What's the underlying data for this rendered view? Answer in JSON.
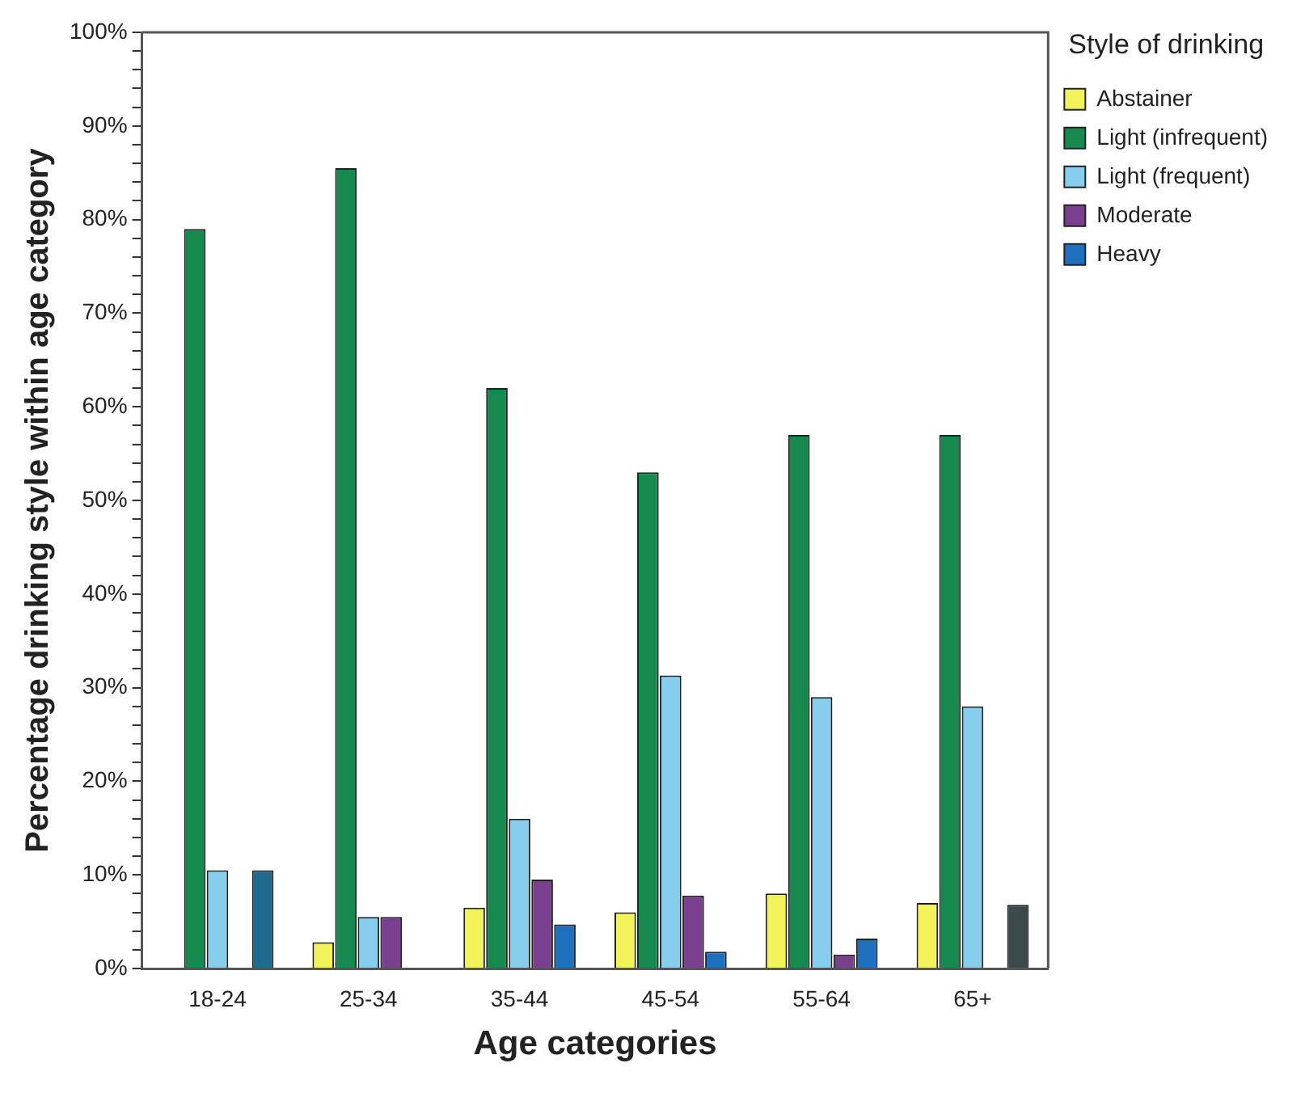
{
  "chart_data": {
    "type": "bar",
    "xlabel": "Age categories",
    "ylabel": "Percentage drinking style within age category",
    "legend_title": "Style of drinking",
    "categories": [
      "18-24",
      "25-34",
      "35-44",
      "45-54",
      "55-64",
      "65+"
    ],
    "series": [
      {
        "name": "Abstainer",
        "color": "#f2f25a",
        "values": [
          0,
          2.8,
          6.5,
          6,
          8,
          7
        ]
      },
      {
        "name": "Light (infrequent)",
        "color": "#168a4e",
        "values": [
          79,
          85.5,
          62,
          53,
          57,
          57
        ]
      },
      {
        "name": "Light (frequent)",
        "color": "#86cdee",
        "values": [
          10.5,
          5.5,
          16,
          31.3,
          29,
          28
        ]
      },
      {
        "name": "Moderate",
        "color": "#7b3f8f",
        "values": [
          0,
          5.5,
          9.5,
          7.8,
          1.5,
          0
        ]
      },
      {
        "name": "Heavy",
        "color": "#1f6fbf",
        "colors": [
          "#1f6a8f",
          "#1f6fbf",
          "#1f6fbf",
          "#1f6fbf",
          "#1f6fbf",
          "#3a4a4a"
        ],
        "values": [
          10.5,
          0,
          4.7,
          1.8,
          3.2,
          6.8
        ]
      }
    ],
    "ylim": [
      0,
      100
    ],
    "yticks": [
      {
        "value": 0,
        "label": "0%"
      },
      {
        "value": 2,
        "label": null
      },
      {
        "value": 4,
        "label": null
      },
      {
        "value": 6,
        "label": null
      },
      {
        "value": 8,
        "label": null
      },
      {
        "value": 10,
        "label": "10%"
      },
      {
        "value": 12,
        "label": null
      },
      {
        "value": 14,
        "label": null
      },
      {
        "value": 16,
        "label": null
      },
      {
        "value": 18,
        "label": null
      },
      {
        "value": 20,
        "label": "20%"
      },
      {
        "value": 22,
        "label": null
      },
      {
        "value": 24,
        "label": null
      },
      {
        "value": 26,
        "label": null
      },
      {
        "value": 28,
        "label": null
      },
      {
        "value": 30,
        "label": "30%"
      },
      {
        "value": 32,
        "label": null
      },
      {
        "value": 34,
        "label": null
      },
      {
        "value": 36,
        "label": null
      },
      {
        "value": 38,
        "label": null
      },
      {
        "value": 40,
        "label": "40%"
      },
      {
        "value": 42,
        "label": null
      },
      {
        "value": 44,
        "label": null
      },
      {
        "value": 46,
        "label": null
      },
      {
        "value": 48,
        "label": null
      },
      {
        "value": 50,
        "label": "50%"
      },
      {
        "value": 52,
        "label": null
      },
      {
        "value": 54,
        "label": null
      },
      {
        "value": 56,
        "label": null
      },
      {
        "value": 58,
        "label": null
      },
      {
        "value": 60,
        "label": "60%"
      },
      {
        "value": 62,
        "label": null
      },
      {
        "value": 64,
        "label": null
      },
      {
        "value": 66,
        "label": null
      },
      {
        "value": 68,
        "label": null
      },
      {
        "value": 70,
        "label": "70%"
      },
      {
        "value": 72,
        "label": null
      },
      {
        "value": 74,
        "label": null
      },
      {
        "value": 76,
        "label": null
      },
      {
        "value": 78,
        "label": null
      },
      {
        "value": 80,
        "label": "80%"
      },
      {
        "value": 82,
        "label": null
      },
      {
        "value": 84,
        "label": null
      },
      {
        "value": 86,
        "label": null
      },
      {
        "value": 88,
        "label": null
      },
      {
        "value": 90,
        "label": "90%"
      },
      {
        "value": 92,
        "label": null
      },
      {
        "value": 94,
        "label": null
      },
      {
        "value": 96,
        "label": null
      },
      {
        "value": 98,
        "label": null
      },
      {
        "value": 100,
        "label": "100%"
      }
    ],
    "grid": false,
    "legend": "top right"
  }
}
